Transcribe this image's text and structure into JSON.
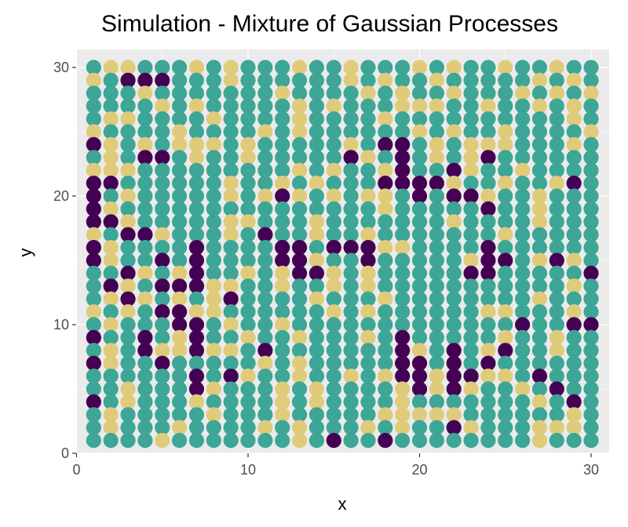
{
  "chart_data": {
    "type": "scatter",
    "title": "Simulation - Mixture of Gaussian Processes",
    "xlabel": "x",
    "ylabel": "y",
    "xlim": [
      0,
      30
    ],
    "ylim": [
      0,
      30
    ],
    "x_ticks": [
      0,
      10,
      20,
      30
    ],
    "y_ticks": [
      0,
      10,
      20,
      30
    ],
    "grid": true,
    "legend": "none",
    "grid_size": 30,
    "colors": {
      "a": "#440154",
      "b": "#3da696",
      "c": "#dfcb79"
    },
    "background_color": "#ebebeb",
    "gridline_color": "#ffffff",
    "rows_top_to_bottom": [
      "bccbbbcbcbbbcbbcbbbcbcbbcbbcbb",
      "cbaaabbbcbbbbbbcbcbbcbbbbbcbcb",
      "bbbcbbbbbbbcbbbbcbcbbcbbbcbcbc",
      "bbbbcbcbbbbbcbcbbbcccbbcbbcbcb",
      "bccbbbbcbbbbcbbbbcbbbbbbbbbbcb",
      "cbbbbcbbbbcbcbbbbbbcbcbbcbbbbc",
      "acbcbcccbcbbbbbcbaabcbcccbbbcb",
      "bcbaabcbbcbbbbbacbabcbcabbbbbb",
      "cccbbbbbbbbbcbcbbcabbacbbcbbbb",
      "aabbbbbbcbbcbcbbbaaaacbbcbbcab",
      "abcbbbbbcbcacbcbccbabaacbbcbbb",
      "acbbbbbbbbbbbbbbbcbbbbbabbcbbb",
      "aacbbbbbccbbbcbbbbbbbcbbbbcbbb",
      "cbaacbbbcbabbcbbcbbbbbbbcbbbbb",
      "acbbbbabbbbaabaaaccbbbbabbbbbb",
      "acbbababbbbaacbbabbbbbcaabcacb",
      "bbacbcabbcbcaacbcbbbbbaabbbbba",
      "bacbaaaccbbcbbcbcbbbbbbbbbbbcb",
      "bcacbcbcabbbbcbbbcbbbbbbbbcbbb",
      "cbcbaaccbbbbbbcbcbbbbbbccbbbcb",
      "bcbbbaabcbbcbbbbbbbbbbbbbabbaa",
      "abbabcabbcbbcbbbcbabbbbbcbbcbb",
      "bcbaccaccbabbbbbbbacbabcabbcbb",
      "acbbabbbbbcbcbbbbbaabababbbbbb",
      "bbbbbbabacbbcbbcbcaacaaccbabbb",
      "bbcbbbacbbbcbcbbbbcacacbbcbabb",
      "abcbbbcbbbbcbcbbbbcbbbbbbbcbab",
      "bcbbbbbcbbbcbbbbbcccccbbbbbbcb",
      "bcbbbcbbbbcbcbbbcbcbbacbbbcccb",
      "bbbbcbbbbbbbcbabbabbbbbbbbcbbb"
    ]
  }
}
